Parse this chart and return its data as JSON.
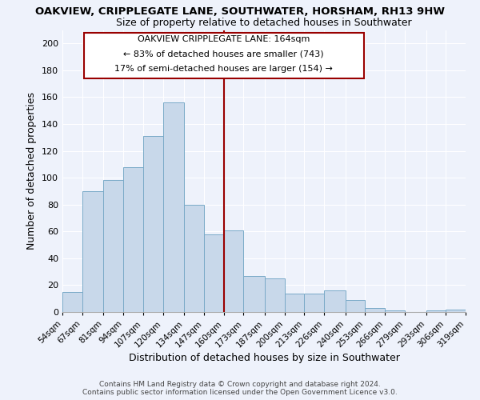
{
  "title": "OAKVIEW, CRIPPLEGATE LANE, SOUTHWATER, HORSHAM, RH13 9HW",
  "subtitle": "Size of property relative to detached houses in Southwater",
  "xlabel": "Distribution of detached houses by size in Southwater",
  "ylabel": "Number of detached properties",
  "bar_color": "#c8d8ea",
  "bar_edge_color": "#7aaac8",
  "bg_color": "#eef2fb",
  "grid_color": "#ffffff",
  "vline_x": 160,
  "vline_color": "#990000",
  "annotation_box_color": "#990000",
  "annotation_text_line1": "OAKVIEW CRIPPLEGATE LANE: 164sqm",
  "annotation_text_line2": "← 83% of detached houses are smaller (743)",
  "annotation_text_line3": "17% of semi-detached houses are larger (154) →",
  "footer_line1": "Contains HM Land Registry data © Crown copyright and database right 2024.",
  "footer_line2": "Contains public sector information licensed under the Open Government Licence v3.0.",
  "categories": [
    "54sqm",
    "67sqm",
    "81sqm",
    "94sqm",
    "107sqm",
    "120sqm",
    "134sqm",
    "147sqm",
    "160sqm",
    "173sqm",
    "187sqm",
    "200sqm",
    "213sqm",
    "226sqm",
    "240sqm",
    "253sqm",
    "266sqm",
    "279sqm",
    "293sqm",
    "306sqm",
    "319sqm"
  ],
  "values": [
    15,
    90,
    98,
    108,
    131,
    156,
    80,
    58,
    61,
    27,
    25,
    14,
    14,
    16,
    9,
    3,
    1,
    0,
    1,
    2
  ],
  "ylim": [
    0,
    210
  ],
  "yticks": [
    0,
    20,
    40,
    60,
    80,
    100,
    120,
    140,
    160,
    180,
    200
  ]
}
